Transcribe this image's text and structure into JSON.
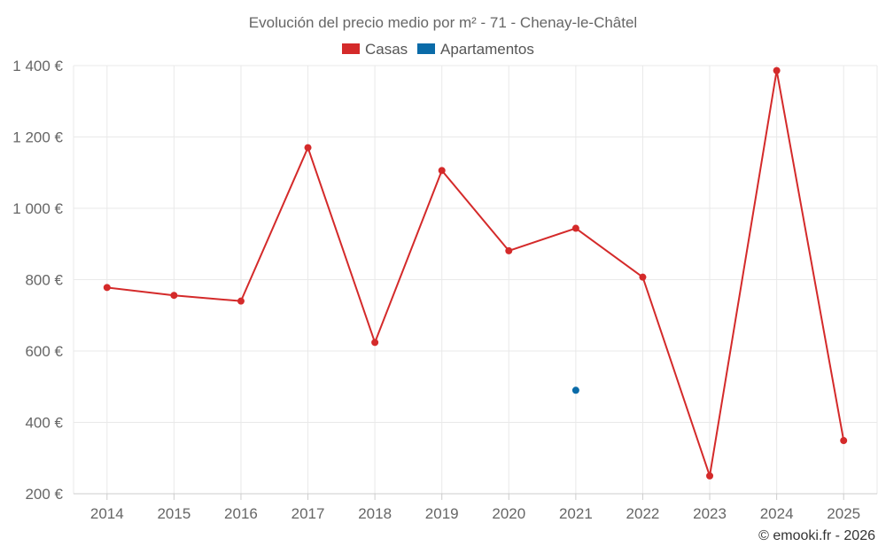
{
  "chart_data": {
    "type": "line",
    "title": "Evolución del precio medio por m² - 71 - Chenay-le-Châtel",
    "categories": [
      "2014",
      "2015",
      "2016",
      "2017",
      "2018",
      "2019",
      "2020",
      "2021",
      "2022",
      "2023",
      "2024",
      "2025"
    ],
    "series": [
      {
        "name": "Casas",
        "color": "#d42a2a",
        "values": [
          778,
          756,
          740,
          1170,
          624,
          1106,
          881,
          944,
          807,
          250,
          1386,
          349
        ]
      },
      {
        "name": "Apartamentos",
        "color": "#0a6ba8",
        "values": [
          null,
          null,
          null,
          null,
          null,
          null,
          null,
          490,
          null,
          null,
          null,
          null
        ]
      }
    ],
    "ylim": [
      200,
      1400
    ],
    "yticks": [
      200,
      400,
      600,
      800,
      1000,
      1200,
      1400
    ],
    "ytick_labels": [
      "200 €",
      "400 €",
      "600 €",
      "800 €",
      "1 000 €",
      "1 200 €",
      "1 400 €"
    ],
    "xlabel": "",
    "ylabel": "",
    "legend_position": "top-center",
    "grid": true
  },
  "credit": "© emooki.fr - 2026"
}
